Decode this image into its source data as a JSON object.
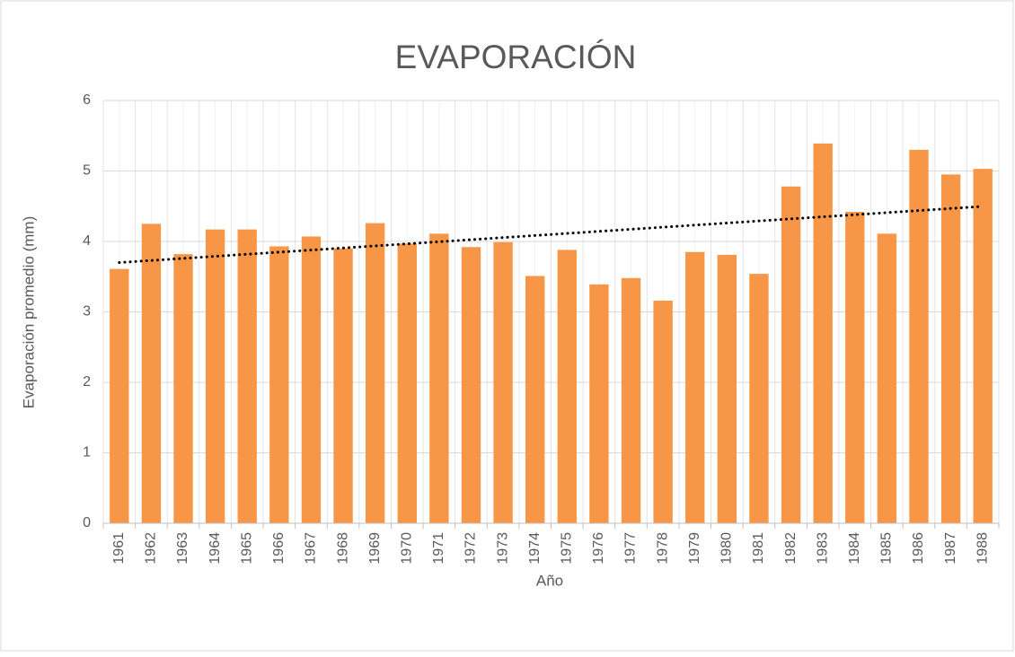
{
  "chart_data": {
    "type": "bar",
    "title": "EVAPORACIÓN",
    "x_label": "Año",
    "y_label": "Evaporación promedio (mm)",
    "categories": [
      "1961",
      "1962",
      "1963",
      "1964",
      "1965",
      "1966",
      "1967",
      "1968",
      "1969",
      "1970",
      "1971",
      "1972",
      "1973",
      "1974",
      "1975",
      "1976",
      "1977",
      "1978",
      "1979",
      "1980",
      "1981",
      "1982",
      "1983",
      "1984",
      "1985",
      "1986",
      "1987",
      "1988"
    ],
    "values": [
      3.61,
      4.25,
      3.82,
      4.17,
      4.17,
      3.93,
      4.07,
      3.9,
      4.26,
      3.97,
      4.11,
      3.92,
      3.99,
      3.51,
      3.88,
      3.39,
      3.48,
      3.16,
      3.85,
      3.81,
      3.54,
      4.78,
      5.39,
      4.42,
      4.11,
      5.3,
      4.95,
      5.03
    ],
    "color": "#f79646",
    "ylim": [
      0,
      6
    ],
    "yticks": [
      0,
      1,
      2,
      3,
      4,
      5,
      6
    ],
    "grid": true,
    "trendline": "linear"
  }
}
